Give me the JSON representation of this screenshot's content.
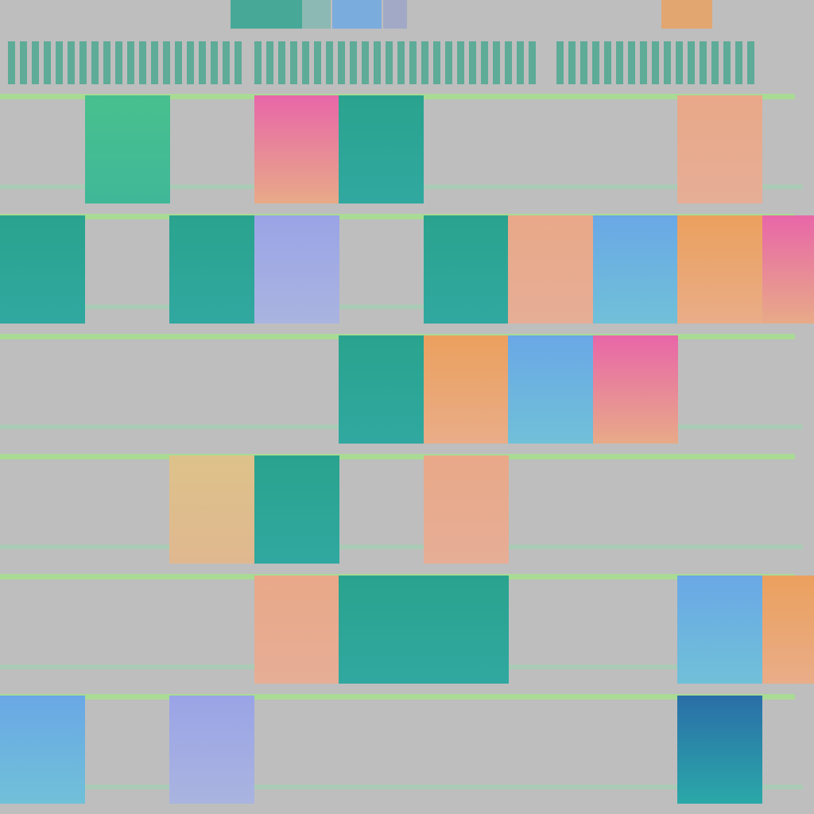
{
  "grid": {
    "rows": 6,
    "cols": 10
  },
  "palette": {
    "background": "#bebebe",
    "teal": "#2aa38e",
    "green": "#48c08e",
    "orange": "#eba05e",
    "peach": "#e9a888",
    "pink": "#e866a8",
    "blue": "#6aa8e6",
    "lavender": "#9aa4e6",
    "yellow": "#ddc28a",
    "deep-blue": "#2a6ea8",
    "line-green": "#a6e08e"
  },
  "header_blocks": [
    {
      "color": "#2aa38e"
    },
    {
      "color": "#7fb8b0"
    },
    {
      "color": "#6aa8e6"
    },
    {
      "color": "#9aa4c8"
    },
    {
      "color": "#eba05e"
    }
  ],
  "cells": [
    {
      "row": 0,
      "col": 1,
      "fill": "green"
    },
    {
      "row": 0,
      "col": 3,
      "fill": "pink"
    },
    {
      "row": 0,
      "col": 4,
      "fill": "teal"
    },
    {
      "row": 0,
      "col": 8,
      "fill": "peach"
    },
    {
      "row": 1,
      "col": 0,
      "fill": "teal"
    },
    {
      "row": 1,
      "col": 2,
      "fill": "teal"
    },
    {
      "row": 1,
      "col": 3,
      "fill": "lavender"
    },
    {
      "row": 1,
      "col": 5,
      "fill": "teal"
    },
    {
      "row": 1,
      "col": 6,
      "fill": "peach"
    },
    {
      "row": 1,
      "col": 7,
      "fill": "blue"
    },
    {
      "row": 1,
      "col": 8,
      "fill": "orange"
    },
    {
      "row": 1,
      "col": 9,
      "fill": "pink"
    },
    {
      "row": 2,
      "col": 4,
      "fill": "teal"
    },
    {
      "row": 2,
      "col": 5,
      "fill": "orange"
    },
    {
      "row": 2,
      "col": 6,
      "fill": "blue"
    },
    {
      "row": 2,
      "col": 7,
      "fill": "pink"
    },
    {
      "row": 3,
      "col": 2,
      "fill": "yellow"
    },
    {
      "row": 3,
      "col": 3,
      "fill": "teal"
    },
    {
      "row": 3,
      "col": 5,
      "fill": "peach"
    },
    {
      "row": 4,
      "col": 3,
      "fill": "peach"
    },
    {
      "row": 4,
      "col": 4,
      "fill": "teal"
    },
    {
      "row": 4,
      "col": 5,
      "fill": "teal"
    },
    {
      "row": 4,
      "col": 8,
      "fill": "blue"
    },
    {
      "row": 4,
      "col": 9,
      "fill": "orange"
    },
    {
      "row": 5,
      "col": 0,
      "fill": "blue"
    },
    {
      "row": 5,
      "col": 2,
      "fill": "lavender"
    },
    {
      "row": 5,
      "col": 8,
      "fill": "deep-blue"
    }
  ]
}
